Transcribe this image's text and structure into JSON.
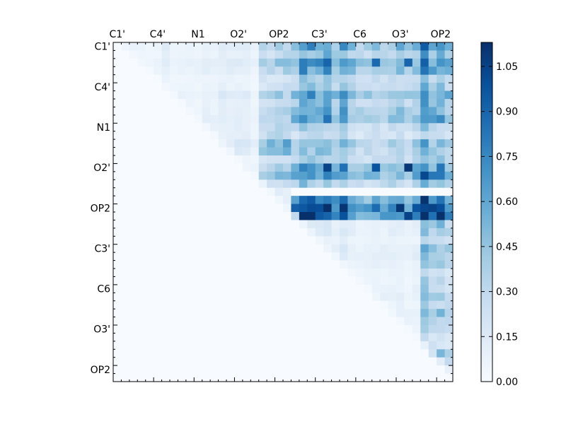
{
  "chart_data": {
    "type": "heatmap",
    "title": "",
    "xlabel": "",
    "ylabel": "",
    "matrix_size": 42,
    "tick_labels": [
      "C1'",
      "C4'",
      "N1",
      "O2'",
      "OP2",
      "C3'",
      "C6",
      "O3'",
      "OP2"
    ],
    "tick_positions": [
      0,
      5,
      10,
      15,
      20,
      25,
      30,
      35,
      40
    ],
    "x_axis_position": "top",
    "colorbar": {
      "vmin": 0.0,
      "vmax": 1.13,
      "ticks": [
        0.0,
        0.15,
        0.3,
        0.45,
        0.6,
        0.75,
        0.9,
        1.05
      ],
      "tick_labels": [
        "0.00",
        "0.15",
        "0.30",
        "0.45",
        "0.60",
        "0.75",
        "0.90",
        "1.05"
      ],
      "colormap": "Blues",
      "colors": [
        "#f7fbff",
        "#deebf7",
        "#c6dbef",
        "#9ecae1",
        "#6baed6",
        "#4292c6",
        "#2171b5",
        "#08519c",
        "#08306b"
      ]
    },
    "regions": [
      {
        "rows": [
          0,
          10
        ],
        "cols": [
          0,
          10
        ],
        "value": 0.08
      },
      {
        "rows": [
          0,
          10
        ],
        "cols": [
          10,
          18
        ],
        "value": 0.1
      },
      {
        "rows": [
          0,
          10
        ],
        "cols": [
          18,
          22
        ],
        "value": 0.35
      },
      {
        "rows": [
          0,
          10
        ],
        "cols": [
          22,
          42
        ],
        "value": 0.55
      },
      {
        "rows": [
          10,
          18
        ],
        "cols": [
          10,
          18
        ],
        "value": 0.1
      },
      {
        "rows": [
          10,
          18
        ],
        "cols": [
          18,
          22
        ],
        "value": 0.4
      },
      {
        "rows": [
          10,
          18
        ],
        "cols": [
          22,
          42
        ],
        "value": 0.32
      },
      {
        "rows": [
          14,
          18
        ],
        "cols": [
          22,
          42
        ],
        "value": 0.58
      },
      {
        "rows": [
          18,
          22
        ],
        "cols": [
          18,
          22
        ],
        "value": 0.1
      },
      {
        "rows": [
          19,
          22
        ],
        "cols": [
          22,
          42
        ],
        "value": 0.75
      },
      {
        "rows": [
          22,
          42
        ],
        "cols": [
          22,
          42
        ],
        "value": 0.1
      },
      {
        "rows": [
          22,
          42
        ],
        "cols": [
          38,
          42
        ],
        "value": 0.32
      }
    ],
    "peaks": [
      {
        "row": 2,
        "col": 26,
        "value": 0.9
      },
      {
        "row": 2,
        "col": 32,
        "value": 0.88
      },
      {
        "row": 2,
        "col": 36,
        "value": 0.9
      },
      {
        "row": 15,
        "col": 26,
        "value": 1.05
      },
      {
        "row": 15,
        "col": 32,
        "value": 0.98
      },
      {
        "row": 15,
        "col": 36,
        "value": 1.1
      },
      {
        "row": 20,
        "col": 25,
        "value": 1.0
      },
      {
        "row": 20,
        "col": 35,
        "value": 1.1
      },
      {
        "row": 20,
        "col": 39,
        "value": 1.05
      },
      {
        "row": 21,
        "col": 36,
        "value": 1.05
      },
      {
        "row": 20,
        "col": 40,
        "value": 1.0
      }
    ]
  }
}
